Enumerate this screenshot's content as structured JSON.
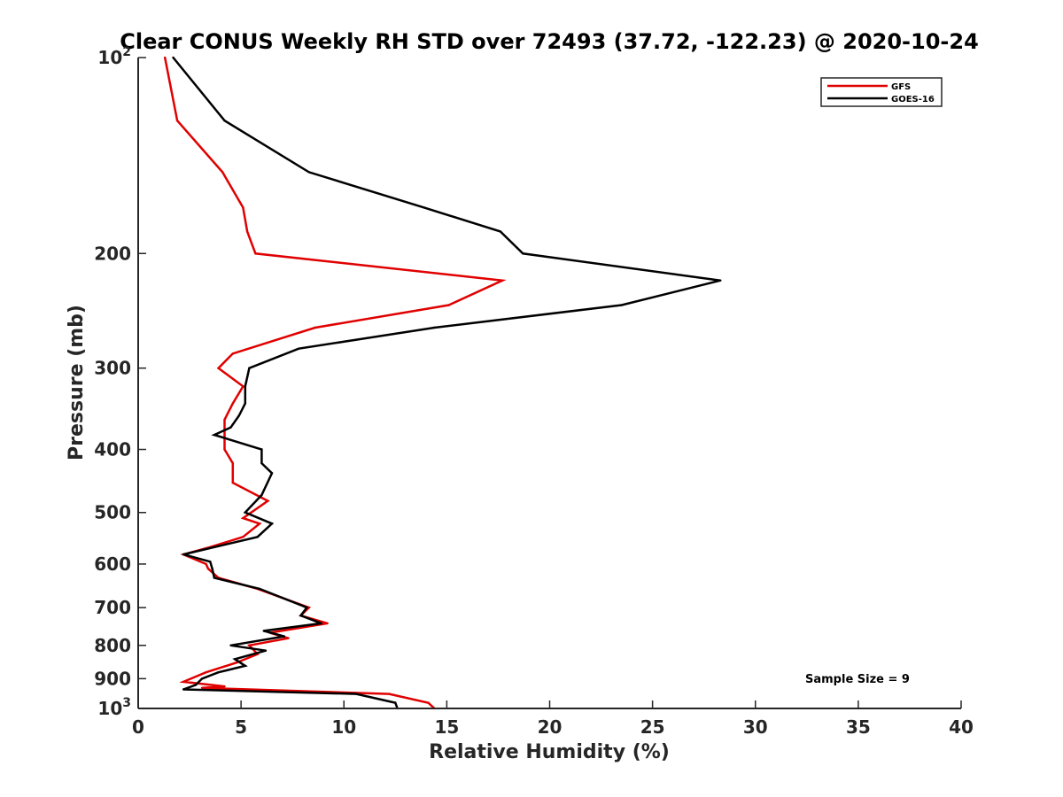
{
  "chart_data": {
    "type": "line",
    "title": "Clear CONUS Weekly RH STD over 72493 (37.72, -122.23) @ 2020-10-24",
    "xlabel": "Relative Humidity (%)",
    "ylabel": "Pressure (mb)",
    "xlim": [
      0,
      40
    ],
    "ylim": [
      100,
      1000
    ],
    "yscale": "log",
    "y_reversed": true,
    "grid": false,
    "legend_position": "top-right",
    "x_ticks": [
      "0",
      "5",
      "10",
      "15",
      "20",
      "25",
      "30",
      "35",
      "40"
    ],
    "y_ticks": [
      {
        "value": 100,
        "base": "10",
        "exp": "2",
        "label": ""
      },
      {
        "value": 200,
        "label": "200"
      },
      {
        "value": 300,
        "label": "300"
      },
      {
        "value": 400,
        "label": "400"
      },
      {
        "value": 500,
        "label": "500"
      },
      {
        "value": 600,
        "label": "600"
      },
      {
        "value": 700,
        "label": "700"
      },
      {
        "value": 800,
        "label": "800"
      },
      {
        "value": 900,
        "label": "900"
      },
      {
        "value": 1000,
        "base": "10",
        "exp": "3",
        "label": ""
      }
    ],
    "annotation": "Sample Size = 9",
    "series": [
      {
        "name": "GFS",
        "color": "#e00000",
        "points": [
          [
            1.3,
            100
          ],
          [
            1.9,
            125
          ],
          [
            4.1,
            150
          ],
          [
            5.1,
            170
          ],
          [
            5.3,
            185
          ],
          [
            5.7,
            200
          ],
          [
            17.7,
            220
          ],
          [
            15.1,
            240
          ],
          [
            8.6,
            260
          ],
          [
            4.6,
            285
          ],
          [
            3.9,
            300
          ],
          [
            5.1,
            320
          ],
          [
            4.6,
            340
          ],
          [
            4.2,
            360
          ],
          [
            4.2,
            380
          ],
          [
            4.2,
            400
          ],
          [
            4.6,
            420
          ],
          [
            4.6,
            450
          ],
          [
            6.3,
            480
          ],
          [
            5.1,
            510
          ],
          [
            5.9,
            520
          ],
          [
            5.1,
            545
          ],
          [
            3.5,
            565
          ],
          [
            2.2,
            580
          ],
          [
            3.3,
            600
          ],
          [
            3.4,
            610
          ],
          [
            3.9,
            630
          ],
          [
            5.8,
            655
          ],
          [
            8.3,
            700
          ],
          [
            7.9,
            720
          ],
          [
            9.2,
            740
          ],
          [
            6.4,
            765
          ],
          [
            7.3,
            780
          ],
          [
            5.4,
            800
          ],
          [
            5.8,
            825
          ],
          [
            4.8,
            850
          ],
          [
            3.3,
            880
          ],
          [
            2.2,
            910
          ],
          [
            4.2,
            925
          ],
          [
            3.1,
            930
          ],
          [
            12.2,
            950
          ],
          [
            14.1,
            980
          ],
          [
            14.4,
            1000
          ]
        ]
      },
      {
        "name": "GOES-16",
        "color": "#000000",
        "points": [
          [
            1.7,
            100
          ],
          [
            4.2,
            125
          ],
          [
            8.3,
            150
          ],
          [
            13.9,
            170
          ],
          [
            17.6,
            185
          ],
          [
            18.7,
            200
          ],
          [
            28.3,
            220
          ],
          [
            23.5,
            240
          ],
          [
            14.4,
            260
          ],
          [
            7.8,
            280
          ],
          [
            5.4,
            300
          ],
          [
            5.2,
            320
          ],
          [
            5.2,
            340
          ],
          [
            4.9,
            355
          ],
          [
            4.5,
            370
          ],
          [
            3.7,
            380
          ],
          [
            6.0,
            400
          ],
          [
            6.0,
            420
          ],
          [
            6.5,
            435
          ],
          [
            6.0,
            470
          ],
          [
            5.2,
            500
          ],
          [
            6.5,
            520
          ],
          [
            5.8,
            545
          ],
          [
            2.2,
            580
          ],
          [
            3.5,
            595
          ],
          [
            3.6,
            610
          ],
          [
            3.7,
            630
          ],
          [
            5.9,
            655
          ],
          [
            8.2,
            700
          ],
          [
            7.9,
            720
          ],
          [
            8.9,
            740
          ],
          [
            6.1,
            760
          ],
          [
            7.1,
            775
          ],
          [
            4.5,
            800
          ],
          [
            6.2,
            815
          ],
          [
            4.7,
            840
          ],
          [
            5.2,
            860
          ],
          [
            3.9,
            880
          ],
          [
            3.1,
            900
          ],
          [
            2.8,
            920
          ],
          [
            2.2,
            935
          ],
          [
            10.6,
            950
          ],
          [
            12.5,
            980
          ],
          [
            12.6,
            1000
          ]
        ]
      }
    ]
  }
}
